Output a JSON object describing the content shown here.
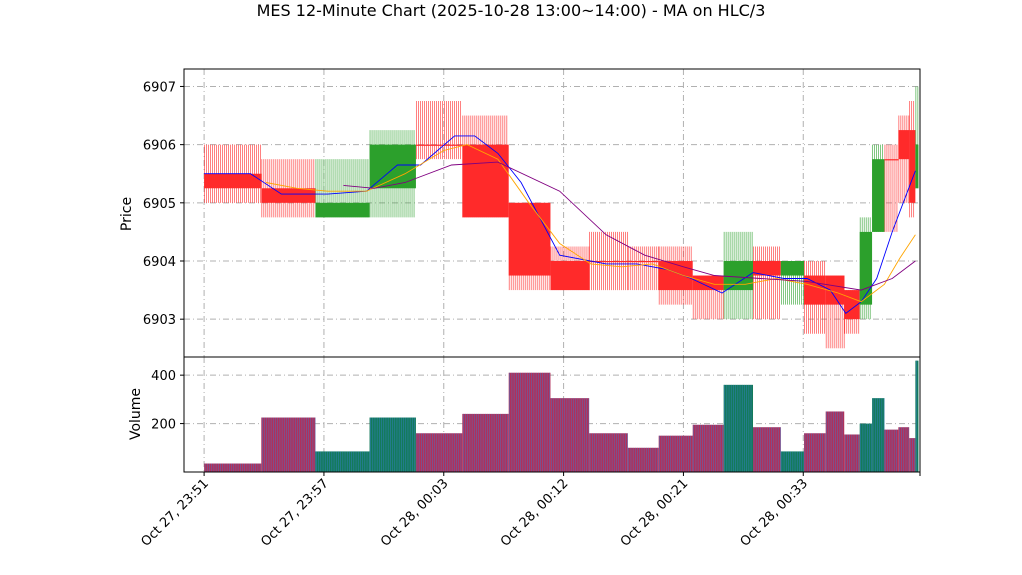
{
  "chart_data": {
    "type": "candlestick",
    "title": "MES 12-Minute Chart (2025-10-28 13:00~14:00) - MA on HLC/3",
    "price_panel": {
      "ylabel": "Price",
      "ylim": [
        6902.35,
        6907.3
      ],
      "yticks": [
        6903,
        6904,
        6905,
        6906,
        6907
      ],
      "grid": true
    },
    "volume_panel": {
      "ylabel": "Volume",
      "ylim": [
        0,
        475
      ],
      "yticks": [
        200,
        400
      ],
      "grid": true
    },
    "x_range": [
      -1.3,
      46.3
    ],
    "x_tick_positions": [
      0,
      7.75,
      15.5,
      23.25,
      31,
      38.75,
      46.3
    ],
    "x_tick_labels": [
      "Oct 27, 23:51",
      "Oct 27, 23:57",
      "Oct 28, 00:03",
      "Oct 28, 00:12",
      "Oct 28, 00:21",
      "Oct 28, 00:33",
      ""
    ],
    "bars": [
      {
        "x0": 0.0,
        "x1": 3.7,
        "open": 6905.5,
        "high": 6906.0,
        "low": 6905.0,
        "close": 6905.25,
        "volume": 35,
        "dir": "down"
      },
      {
        "x0": 3.7,
        "x1": 7.2,
        "open": 6905.25,
        "high": 6905.75,
        "low": 6904.75,
        "close": 6905.0,
        "volume": 225,
        "dir": "down"
      },
      {
        "x0": 7.2,
        "x1": 10.7,
        "open": 6905.0,
        "high": 6905.75,
        "low": 6904.75,
        "close": 6904.75,
        "volume": 85,
        "dir": "up"
      },
      {
        "x0": 10.7,
        "x1": 13.7,
        "open": 6905.25,
        "high": 6906.25,
        "low": 6904.75,
        "close": 6906.0,
        "volume": 225,
        "dir": "up"
      },
      {
        "x0": 13.7,
        "x1": 16.7,
        "open": 6906.0,
        "high": 6906.75,
        "low": 6905.75,
        "close": 6906.0,
        "volume": 160,
        "dir": "down"
      },
      {
        "x0": 16.7,
        "x1": 19.7,
        "open": 6906.0,
        "high": 6906.5,
        "low": 6904.75,
        "close": 6904.75,
        "volume": 240,
        "dir": "down"
      },
      {
        "x0": 19.7,
        "x1": 22.4,
        "open": 6905.0,
        "high": 6905.0,
        "low": 6903.5,
        "close": 6903.75,
        "volume": 410,
        "dir": "down"
      },
      {
        "x0": 22.4,
        "x1": 24.9,
        "open": 6904.0,
        "high": 6904.25,
        "low": 6903.5,
        "close": 6903.5,
        "volume": 305,
        "dir": "down"
      },
      {
        "x0": 24.9,
        "x1": 27.4,
        "open": 6904.0,
        "high": 6904.5,
        "low": 6903.5,
        "close": 6904.0,
        "volume": 160,
        "dir": "down"
      },
      {
        "x0": 27.4,
        "x1": 29.4,
        "open": 6904.0,
        "high": 6904.25,
        "low": 6903.5,
        "close": 6904.0,
        "volume": 100,
        "dir": "down"
      },
      {
        "x0": 29.4,
        "x1": 31.6,
        "open": 6904.0,
        "high": 6904.25,
        "low": 6903.25,
        "close": 6903.5,
        "volume": 150,
        "dir": "down"
      },
      {
        "x0": 31.6,
        "x1": 33.6,
        "open": 6903.75,
        "high": 6903.75,
        "low": 6903.0,
        "close": 6903.5,
        "volume": 195,
        "dir": "down"
      },
      {
        "x0": 33.6,
        "x1": 35.5,
        "open": 6903.5,
        "high": 6904.5,
        "low": 6903.0,
        "close": 6904.0,
        "volume": 360,
        "dir": "up"
      },
      {
        "x0": 35.5,
        "x1": 37.3,
        "open": 6904.0,
        "high": 6904.25,
        "low": 6903.0,
        "close": 6903.75,
        "volume": 185,
        "dir": "down"
      },
      {
        "x0": 37.3,
        "x1": 38.8,
        "open": 6903.75,
        "high": 6904.0,
        "low": 6903.25,
        "close": 6904.0,
        "volume": 85,
        "dir": "up"
      },
      {
        "x0": 38.8,
        "x1": 40.2,
        "open": 6903.75,
        "high": 6904.0,
        "low": 6902.75,
        "close": 6903.25,
        "volume": 160,
        "dir": "down"
      },
      {
        "x0": 40.2,
        "x1": 41.4,
        "open": 6903.75,
        "high": 6903.75,
        "low": 6902.5,
        "close": 6903.25,
        "volume": 250,
        "dir": "down"
      },
      {
        "x0": 41.4,
        "x1": 42.4,
        "open": 6903.5,
        "high": 6903.5,
        "low": 6902.75,
        "close": 6903.0,
        "volume": 155,
        "dir": "down"
      },
      {
        "x0": 42.4,
        "x1": 43.2,
        "open": 6903.25,
        "high": 6904.75,
        "low": 6903.0,
        "close": 6904.5,
        "volume": 200,
        "dir": "up"
      },
      {
        "x0": 43.2,
        "x1": 44.0,
        "open": 6904.5,
        "high": 6906.0,
        "low": 6904.5,
        "close": 6905.75,
        "volume": 305,
        "dir": "up"
      },
      {
        "x0": 44.0,
        "x1": 44.9,
        "open": 6905.75,
        "high": 6906.0,
        "low": 6904.5,
        "close": 6905.75,
        "volume": 175,
        "dir": "down"
      },
      {
        "x0": 44.9,
        "x1": 45.6,
        "open": 6906.25,
        "high": 6906.5,
        "low": 6905.0,
        "close": 6905.75,
        "volume": 185,
        "dir": "down"
      },
      {
        "x0": 45.6,
        "x1": 46.0,
        "open": 6906.25,
        "high": 6906.75,
        "low": 6904.75,
        "close": 6905.0,
        "volume": 140,
        "dir": "down"
      },
      {
        "x0": 46.0,
        "x1": 46.2,
        "open": 6905.25,
        "high": 6907.0,
        "low": 6905.25,
        "close": 6906.0,
        "volume": 460,
        "dir": "up"
      }
    ],
    "series": [
      {
        "color": "#0000ff",
        "x": [
          0,
          3,
          5,
          8,
          10.5,
          12.5,
          14,
          16.2,
          17.5,
          19,
          20.5,
          23,
          26,
          28,
          30,
          31.5,
          33.5,
          35.5,
          37.5,
          39,
          40.5,
          41.5,
          42.5,
          43.5,
          44.5,
          45.5,
          46.0
        ],
        "y": [
          6905.5,
          6905.5,
          6905.15,
          6905.15,
          6905.2,
          6905.65,
          6905.65,
          6906.15,
          6906.15,
          6905.85,
          6905.35,
          6904.1,
          6903.95,
          6903.95,
          6903.85,
          6903.7,
          6903.45,
          6903.8,
          6903.7,
          6903.7,
          6903.5,
          6903.1,
          6903.3,
          6903.7,
          6904.5,
          6905.2,
          6905.55
        ]
      },
      {
        "color": "#ffa500",
        "x": [
          4,
          6,
          8,
          10.5,
          13,
          15.5,
          17,
          19,
          21,
          23,
          25,
          27,
          29,
          31,
          33,
          35,
          37,
          39,
          41,
          42.5,
          44,
          45,
          46
        ],
        "y": [
          6905.35,
          6905.25,
          6905.2,
          6905.2,
          6905.5,
          6905.9,
          6906.0,
          6905.75,
          6905.0,
          6904.3,
          6903.95,
          6903.9,
          6903.95,
          6903.75,
          6903.6,
          6903.6,
          6903.7,
          6903.6,
          6903.45,
          6903.3,
          6903.6,
          6904.05,
          6904.45
        ]
      },
      {
        "color": "#800080",
        "x": [
          9,
          11,
          13,
          16,
          19,
          23,
          26,
          28.5,
          31,
          33,
          36,
          39,
          42.5,
          44.5,
          46
        ],
        "y": [
          6905.3,
          6905.25,
          6905.35,
          6905.65,
          6905.7,
          6905.2,
          6904.45,
          6904.1,
          6903.9,
          6903.75,
          6903.7,
          6903.65,
          6903.5,
          6903.7,
          6904.0
        ]
      }
    ],
    "colors": {
      "up": "#2ca02c",
      "down": "#ff2a2a",
      "grid": "#b0b0b0"
    }
  }
}
